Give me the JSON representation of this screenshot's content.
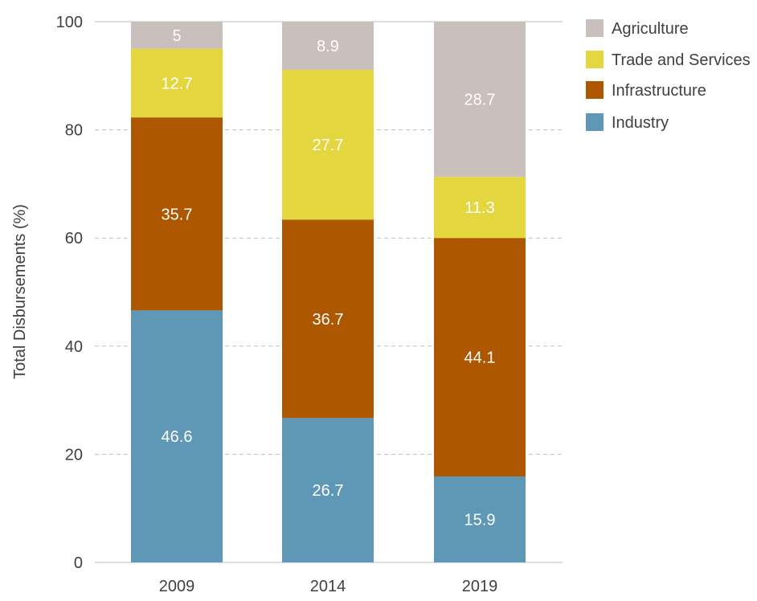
{
  "chart_data": {
    "type": "bar",
    "stacked": true,
    "categories": [
      "2009",
      "2014",
      "2019"
    ],
    "series": [
      {
        "name": "Industry",
        "values": [
          46.6,
          26.7,
          15.9
        ],
        "color": "#5f97b6"
      },
      {
        "name": "Infrastructure",
        "values": [
          35.7,
          36.7,
          44.1
        ],
        "color": "#ad5700"
      },
      {
        "name": "Trade and Services",
        "values": [
          12.7,
          27.7,
          11.3
        ],
        "color": "#e3d63f"
      },
      {
        "name": "Agriculture",
        "values": [
          5,
          8.9,
          28.7
        ],
        "color": "#c9bfbd"
      }
    ],
    "data_labels": [
      [
        "46.6",
        "26.7",
        "15.9"
      ],
      [
        "35.7",
        "36.7",
        "44.1"
      ],
      [
        "12.7",
        "27.7",
        "11.3"
      ],
      [
        "5",
        "8.9",
        "28.7"
      ]
    ],
    "ylabel": "Total Disbursements (%)",
    "xlabel": "",
    "ylim": [
      0,
      100
    ],
    "yticks": [
      0,
      20,
      40,
      60,
      80,
      100
    ],
    "grid": true,
    "legend_position": "top-right",
    "legend_order": [
      "Agriculture",
      "Trade and Services",
      "Infrastructure",
      "Industry"
    ],
    "axis_text_color": "#404040",
    "grid_color": "#bfbfbf",
    "label_color": "#ffffff"
  }
}
